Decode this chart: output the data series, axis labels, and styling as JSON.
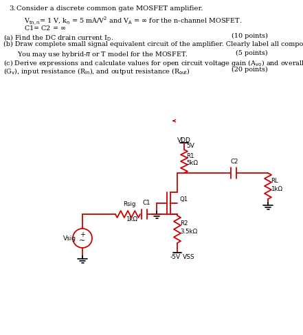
{
  "circuit_color": "#cc0000",
  "bg_color": "#ffffff",
  "text_color": "#000000",
  "vdd_label": "VDD",
  "vdd_val": "5V",
  "vss_label": "VSS",
  "vss_val": "-5V",
  "r1_label": "R1",
  "r1_val": "5kΩ",
  "r2_label": "R2",
  "r2_val": "3.5kΩ",
  "rl_label": "RL",
  "rl_val": "1kΩ",
  "rsig_label": "Rsig",
  "rsig_val": "1kΩ",
  "c1_label": "C1",
  "c2_label": "C2",
  "q1_label": "Q1",
  "vsig_label": "Vsig"
}
